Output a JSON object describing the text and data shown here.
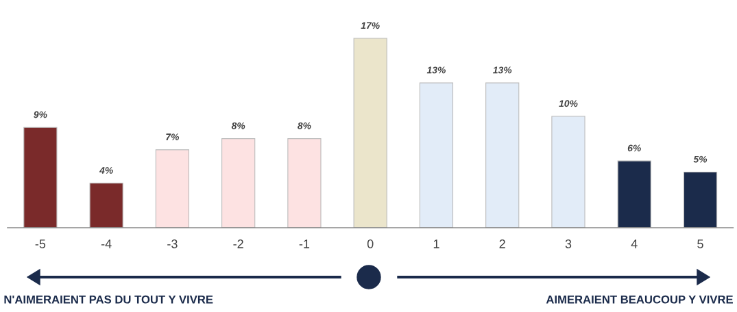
{
  "chart_data": {
    "type": "bar",
    "categories": [
      "-5",
      "-4",
      "-3",
      "-2",
      "-1",
      "0",
      "1",
      "2",
      "3",
      "4",
      "5"
    ],
    "values": [
      9,
      4,
      7,
      8,
      8,
      17,
      13,
      13,
      10,
      6,
      5
    ],
    "colors": [
      "#7a2a2a",
      "#7a2a2a",
      "#fde2e2",
      "#fde2e2",
      "#fde2e2",
      "#ebe5cb",
      "#e2ecf8",
      "#e2ecf8",
      "#e2ecf8",
      "#1b2b4b",
      "#1b2b4b"
    ],
    "value_labels": [
      "9%",
      "4%",
      "7%",
      "8%",
      "8%",
      "17%",
      "13%",
      "13%",
      "10%",
      "6%",
      "5%"
    ],
    "tick_labels": "x",
    "annotations": [
      "N'AIMERAIENT PAS DU TOUT Y VIVRE",
      "AIMERAIENT BEAUCOUP Y VIVRE"
    ]
  }
}
